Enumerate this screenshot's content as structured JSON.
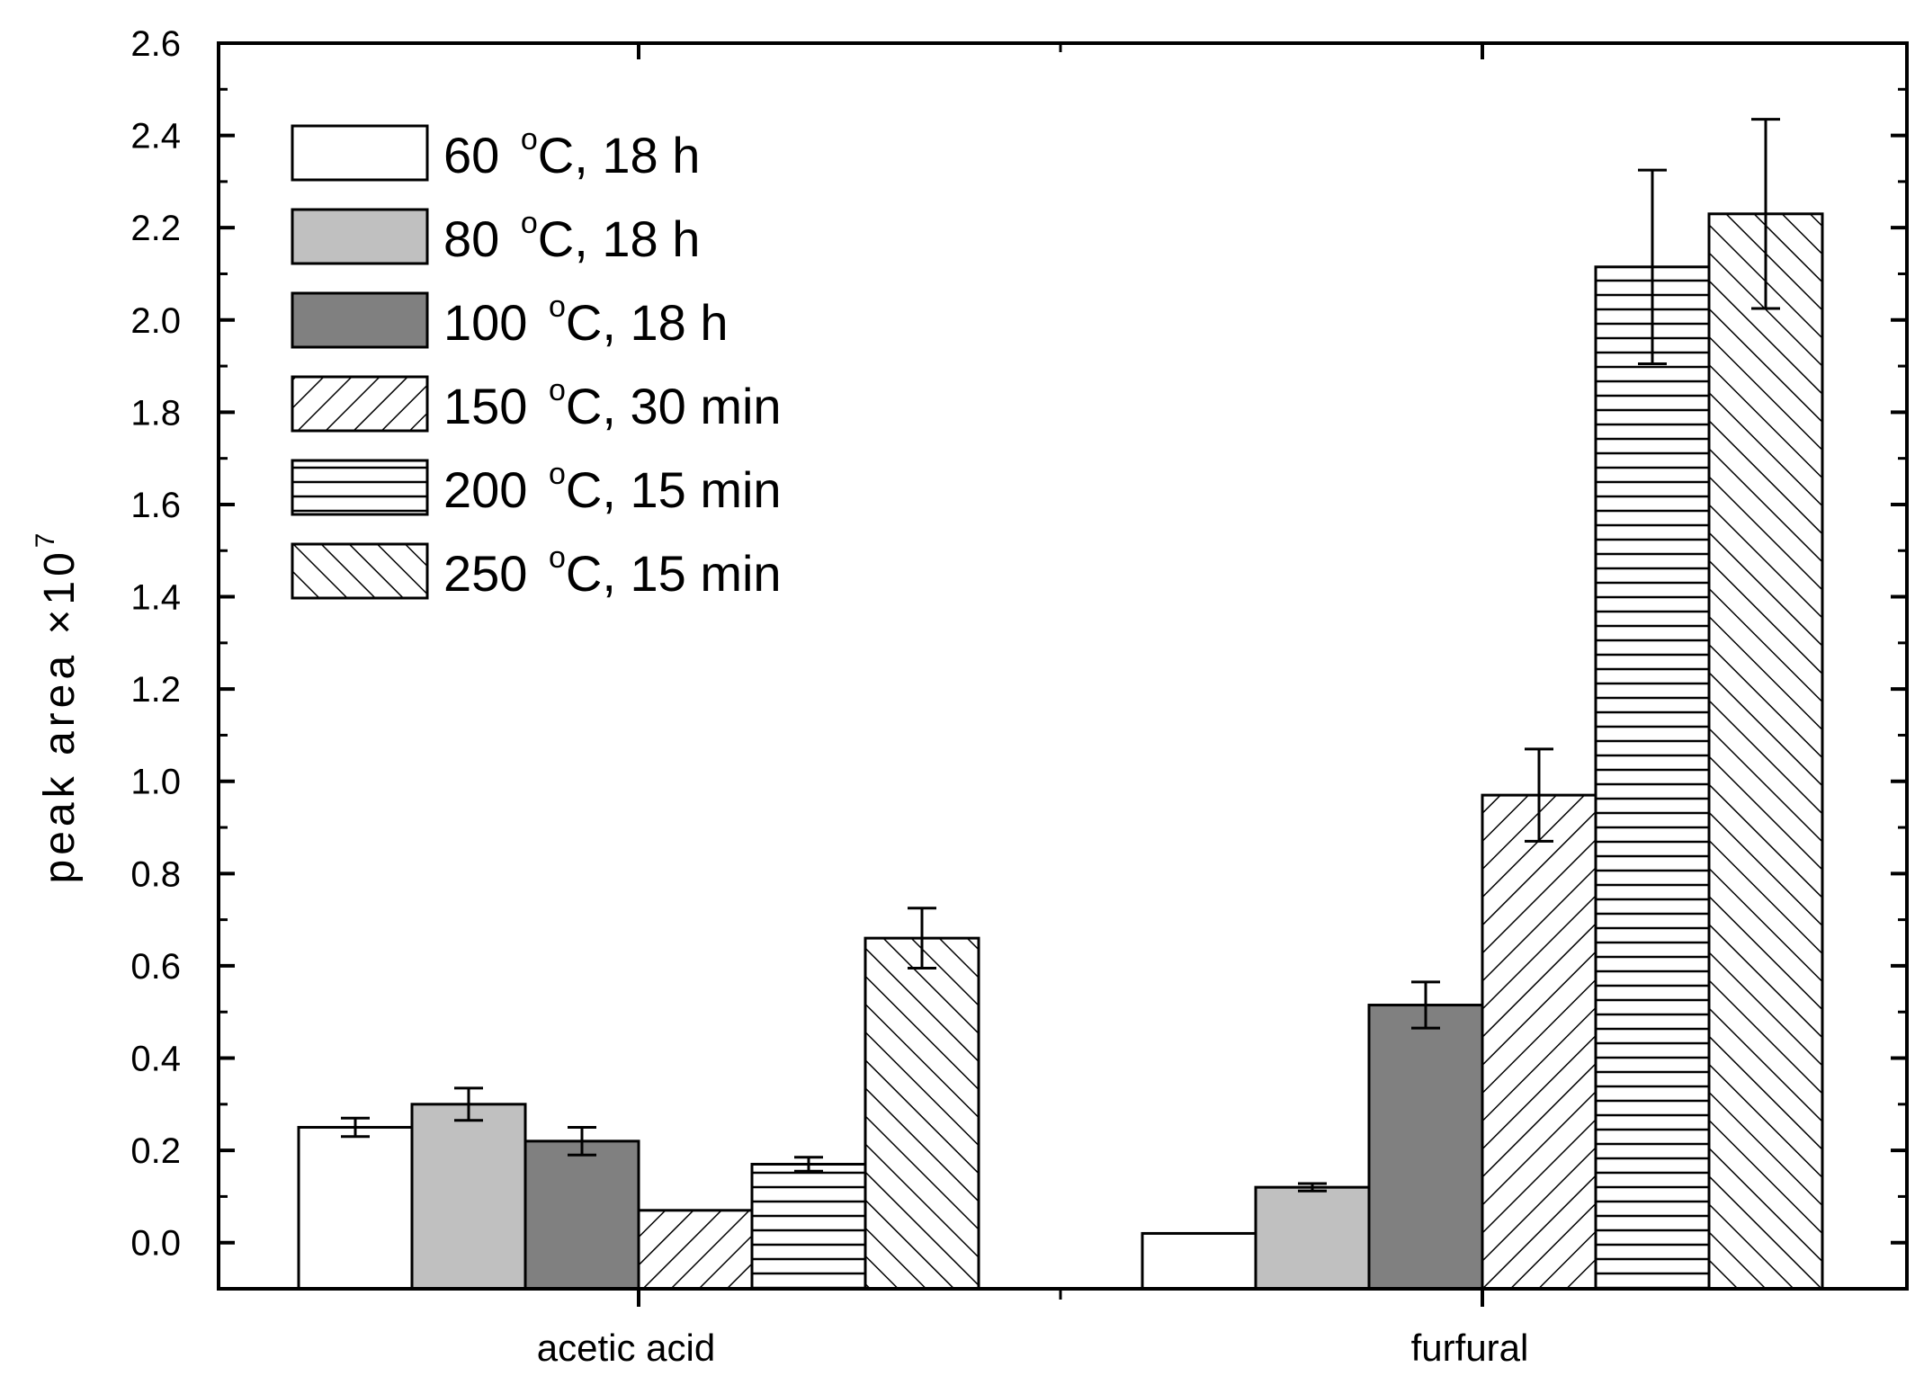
{
  "chart_data": {
    "type": "bar",
    "ylabel": "peak area ×10",
    "ylabel_exponent": "7",
    "ylim": [
      -0.1,
      2.6
    ],
    "yticks": [
      "0.0",
      "0.2",
      "0.4",
      "0.6",
      "0.8",
      "1.0",
      "1.2",
      "1.4",
      "1.6",
      "1.8",
      "2.0",
      "2.2",
      "2.4",
      "2.6"
    ],
    "categories": [
      "acetic acid",
      "furfural"
    ],
    "series": [
      {
        "name": "60 °C, 18 h",
        "label_num": "60",
        "label_rest": "C, 18 h",
        "fill": "#ffffff",
        "pattern": "none",
        "values": [
          0.25,
          0.02
        ],
        "errors": [
          0.02,
          0.0
        ]
      },
      {
        "name": "80 °C, 18 h",
        "label_num": "80",
        "label_rest": "C, 18 h",
        "fill": "#c0c0c0",
        "pattern": "none",
        "values": [
          0.3,
          0.12
        ],
        "errors": [
          0.035,
          0.008
        ]
      },
      {
        "name": "100 °C, 18 h",
        "label_num": "100",
        "label_rest": "C, 18 h",
        "fill": "#808080",
        "pattern": "none",
        "values": [
          0.22,
          0.515
        ],
        "errors": [
          0.03,
          0.05
        ]
      },
      {
        "name": "150 °C, 30 min",
        "label_num": "150",
        "label_rest": "C, 30 min",
        "fill": "#ffffff",
        "pattern": "diag-up",
        "values": [
          0.07,
          0.97
        ],
        "errors": [
          0.0,
          0.1
        ]
      },
      {
        "name": "200 °C, 15 min",
        "label_num": "200",
        "label_rest": "C, 15 min",
        "fill": "#ffffff",
        "pattern": "horizontal",
        "values": [
          0.17,
          2.115
        ],
        "errors": [
          0.015,
          0.21
        ]
      },
      {
        "name": "250 °C, 15 min",
        "label_num": "250",
        "label_rest": "C, 15 min",
        "fill": "#ffffff",
        "pattern": "diag-down",
        "values": [
          0.66,
          2.23
        ],
        "errors": [
          0.065,
          0.205
        ]
      }
    ],
    "legend": {
      "position": "top-left",
      "degree_symbol": "o"
    },
    "grid": false
  }
}
